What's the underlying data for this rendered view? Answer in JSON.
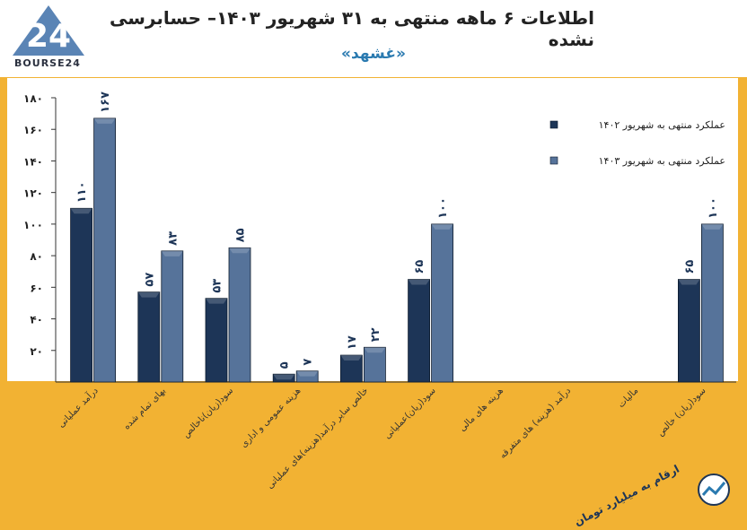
{
  "header": {
    "title": "اطلاعات ۶ ماهه منتهی به ۳۱ شهریور ۱۴۰۳– حسابرسی نشده",
    "subtitle": "«غشهد»",
    "logo_text": "BOURSE24"
  },
  "footer": {
    "units_label": "ارقام به میلیارد تومان"
  },
  "colors": {
    "background": "#f2b233",
    "plot_bg": "#ffffff",
    "series_1402": "#1d3557",
    "series_1403": "#56739a"
  },
  "chart_data": {
    "type": "bar",
    "categories": [
      "درآمد عملیاتی",
      "بهای تمام شده",
      "سود(زیان)ناخالص",
      "هزینه عمومی و اداری",
      "خالص سایر درآمد(هزینه)های عملیاتی",
      "سود(زیان)عملیاتی",
      "هزینه های مالی",
      "درآمد (هزینه) های متفرقه",
      "مالیات",
      "سود(زیان) خالص"
    ],
    "series": [
      {
        "name": "عملکرد منتهی به شهریور ۱۴۰۲",
        "values": [
          110,
          57,
          53,
          5,
          17,
          65,
          0,
          0,
          0,
          65
        ],
        "labels": [
          "۱۱۰",
          "۵۷",
          "۵۳",
          "۵",
          "۱۷",
          "۶۵",
          "",
          "",
          "",
          "۶۵"
        ]
      },
      {
        "name": "عملکرد منتهی به شهریور ۱۴۰۳",
        "values": [
          167,
          83,
          85,
          7,
          22,
          100,
          0,
          0,
          0,
          100
        ],
        "labels": [
          "۱۶۷",
          "۸۳",
          "۸۵",
          "۷",
          "۲۲",
          "۱۰۰",
          "",
          "",
          "",
          "۱۰۰"
        ]
      }
    ],
    "yticks": [
      "۲۰",
      "۴۰",
      "۶۰",
      "۸۰",
      "۱۰۰",
      "۱۲۰",
      "۱۴۰",
      "۱۶۰",
      "۱۸۰"
    ],
    "ylim": [
      0,
      180
    ],
    "grid": false,
    "legend_position": "top-right"
  }
}
